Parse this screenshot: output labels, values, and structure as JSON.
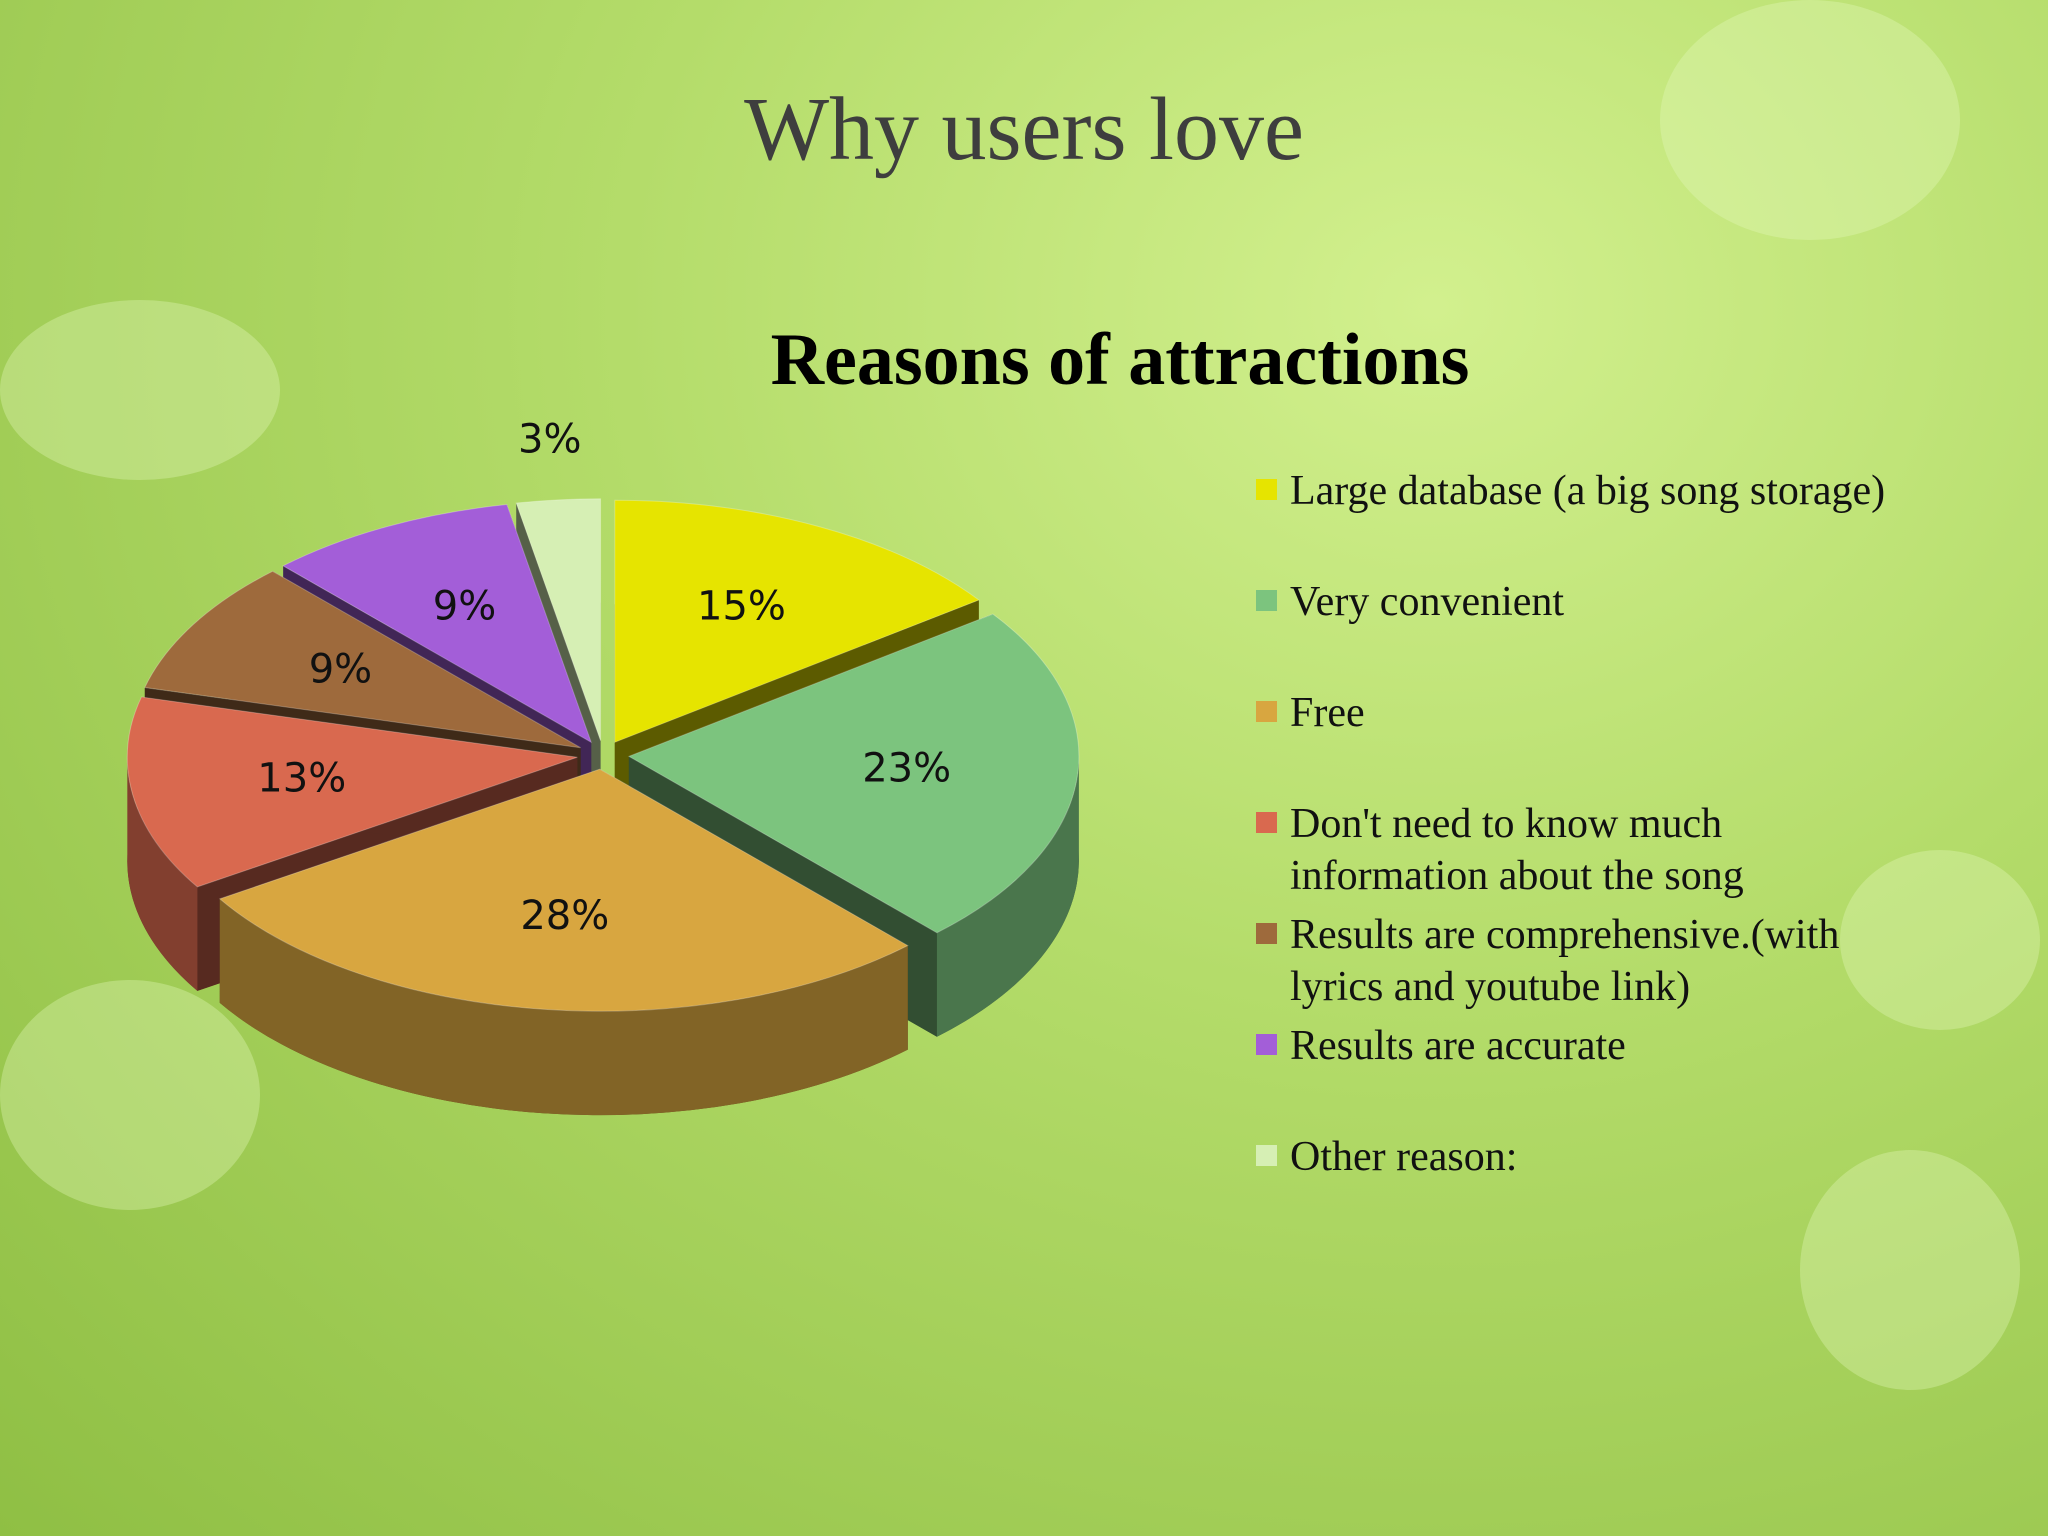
{
  "slide_title": "Why users love",
  "chart_data": {
    "type": "pie",
    "title": "Reasons of attractions",
    "categories": [
      "Large database (a big song storage)",
      "Very convenient",
      "Free",
      "Don't need to know much information about the song",
      "Results are comprehensive.(with lyrics and youtube link)",
      "Results are accurate",
      "Other reason:"
    ],
    "values": [
      15,
      23,
      28,
      13,
      9,
      9,
      3
    ],
    "value_labels": [
      "15%",
      "23%",
      "28%",
      "13%",
      "9%",
      "9%",
      "3%"
    ],
    "colors": [
      "#e6e400",
      "#7cc47e",
      "#d8a640",
      "#d9694f",
      "#9e6a3c",
      "#a35ed8",
      "#d6efb4"
    ],
    "legend": "right"
  }
}
